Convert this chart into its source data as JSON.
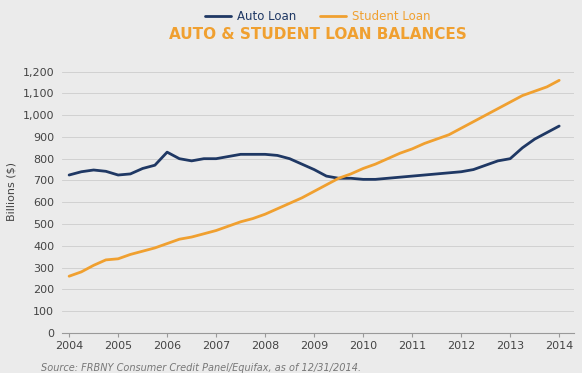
{
  "title": "AUTO & STUDENT LOAN BALANCES",
  "title_color": "#F0A030",
  "ylabel": "Billions ($)",
  "background_color": "#EBEBEB",
  "plot_background_color": "#EBEBEB",
  "source_text": "Source: FRBNY Consumer Credit Panel/Equifax, as of 12/31/2014.",
  "auto_loan": {
    "label": "Auto Loan",
    "color": "#1F3864",
    "linewidth": 2.0,
    "x": [
      2004.0,
      2004.25,
      2004.5,
      2004.75,
      2005.0,
      2005.25,
      2005.5,
      2005.75,
      2006.0,
      2006.25,
      2006.5,
      2006.75,
      2007.0,
      2007.25,
      2007.5,
      2007.75,
      2008.0,
      2008.25,
      2008.5,
      2008.75,
      2009.0,
      2009.25,
      2009.5,
      2009.75,
      2010.0,
      2010.25,
      2010.5,
      2010.75,
      2011.0,
      2011.25,
      2011.5,
      2011.75,
      2012.0,
      2012.25,
      2012.5,
      2012.75,
      2013.0,
      2013.25,
      2013.5,
      2013.75,
      2014.0
    ],
    "y": [
      725,
      740,
      748,
      742,
      725,
      730,
      755,
      770,
      830,
      800,
      790,
      800,
      800,
      810,
      820,
      820,
      820,
      815,
      800,
      775,
      750,
      720,
      710,
      710,
      705,
      705,
      710,
      715,
      720,
      725,
      730,
      735,
      740,
      750,
      770,
      790,
      800,
      850,
      890,
      920,
      950
    ]
  },
  "student_loan": {
    "label": "Student Loan",
    "color": "#F0A030",
    "linewidth": 2.0,
    "x": [
      2004.0,
      2004.25,
      2004.5,
      2004.75,
      2005.0,
      2005.25,
      2005.5,
      2005.75,
      2006.0,
      2006.25,
      2006.5,
      2006.75,
      2007.0,
      2007.25,
      2007.5,
      2007.75,
      2008.0,
      2008.25,
      2008.5,
      2008.75,
      2009.0,
      2009.25,
      2009.5,
      2009.75,
      2010.0,
      2010.25,
      2010.5,
      2010.75,
      2011.0,
      2011.25,
      2011.5,
      2011.75,
      2012.0,
      2012.25,
      2012.5,
      2012.75,
      2013.0,
      2013.25,
      2013.5,
      2013.75,
      2014.0
    ],
    "y": [
      260,
      280,
      310,
      335,
      340,
      360,
      375,
      390,
      410,
      430,
      440,
      455,
      470,
      490,
      510,
      525,
      545,
      570,
      595,
      620,
      650,
      680,
      710,
      730,
      755,
      775,
      800,
      825,
      845,
      870,
      890,
      910,
      940,
      970,
      1000,
      1030,
      1060,
      1090,
      1110,
      1130,
      1160
    ]
  },
  "ylim": [
    0,
    1300
  ],
  "yticks": [
    0,
    100,
    200,
    300,
    400,
    500,
    600,
    700,
    800,
    900,
    1000,
    1100,
    1200
  ],
  "xlim": [
    2003.85,
    2014.3
  ],
  "xticks": [
    2004,
    2005,
    2006,
    2007,
    2008,
    2009,
    2010,
    2011,
    2012,
    2013,
    2014
  ]
}
